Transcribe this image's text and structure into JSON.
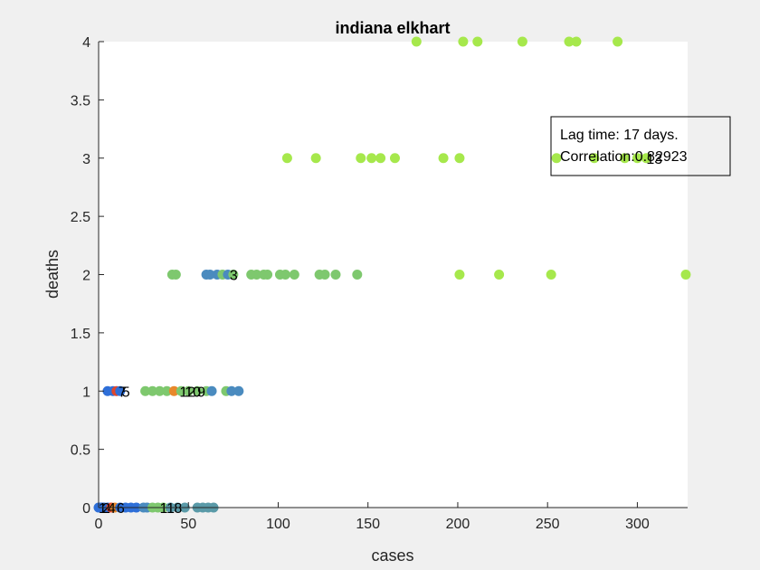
{
  "chart_data": {
    "type": "scatter",
    "title": "indiana elkhart",
    "xlabel": "cases",
    "ylabel": "deaths",
    "xlim": [
      0,
      328
    ],
    "ylim": [
      0,
      4
    ],
    "xticks": [
      0,
      50,
      100,
      150,
      200,
      250,
      300
    ],
    "yticks": [
      0,
      0.5,
      1,
      1.5,
      2,
      2.5,
      3,
      3.5,
      4
    ],
    "annotation": [
      "Lag time: 17 days.",
      "Correlation:0.82923"
    ],
    "legend_position": "top-right",
    "colors": {
      "blue": "#2e6fd8",
      "steel": "#4a8bbf",
      "teal": "#5a9aa8",
      "green": "#7ec86e",
      "lime": "#a6e84c",
      "red": "#e0472b",
      "orange": "#e8882b"
    },
    "points": [
      {
        "x": 0,
        "y": 0,
        "c": "blue"
      },
      {
        "x": 1,
        "y": 0,
        "c": "blue"
      },
      {
        "x": 2,
        "y": 0,
        "c": "blue"
      },
      {
        "x": 3,
        "y": 0,
        "c": "blue"
      },
      {
        "x": 5,
        "y": 0,
        "c": "blue"
      },
      {
        "x": 7,
        "y": 0,
        "c": "red"
      },
      {
        "x": 9,
        "y": 0,
        "c": "orange"
      },
      {
        "x": 12,
        "y": 0,
        "c": "blue"
      },
      {
        "x": 15,
        "y": 0,
        "c": "blue"
      },
      {
        "x": 18,
        "y": 0,
        "c": "blue"
      },
      {
        "x": 21,
        "y": 0,
        "c": "blue"
      },
      {
        "x": 25,
        "y": 0,
        "c": "steel"
      },
      {
        "x": 27,
        "y": 0,
        "c": "steel"
      },
      {
        "x": 30,
        "y": 0,
        "c": "green"
      },
      {
        "x": 33,
        "y": 0,
        "c": "green"
      },
      {
        "x": 36,
        "y": 0,
        "c": "green"
      },
      {
        "x": 40,
        "y": 0,
        "c": "teal"
      },
      {
        "x": 44,
        "y": 0,
        "c": "teal"
      },
      {
        "x": 48,
        "y": 0,
        "c": "teal"
      },
      {
        "x": 55,
        "y": 0,
        "c": "teal"
      },
      {
        "x": 58,
        "y": 0,
        "c": "teal"
      },
      {
        "x": 61,
        "y": 0,
        "c": "teal"
      },
      {
        "x": 64,
        "y": 0,
        "c": "teal"
      },
      {
        "x": 5,
        "y": 1,
        "c": "blue"
      },
      {
        "x": 8,
        "y": 1,
        "c": "blue"
      },
      {
        "x": 10,
        "y": 1,
        "c": "red"
      },
      {
        "x": 12,
        "y": 1,
        "c": "blue"
      },
      {
        "x": 26,
        "y": 1,
        "c": "green"
      },
      {
        "x": 30,
        "y": 1,
        "c": "green"
      },
      {
        "x": 34,
        "y": 1,
        "c": "green"
      },
      {
        "x": 38,
        "y": 1,
        "c": "green"
      },
      {
        "x": 42,
        "y": 1,
        "c": "orange"
      },
      {
        "x": 46,
        "y": 1,
        "c": "green"
      },
      {
        "x": 50,
        "y": 1,
        "c": "green"
      },
      {
        "x": 55,
        "y": 1,
        "c": "green"
      },
      {
        "x": 60,
        "y": 1,
        "c": "green"
      },
      {
        "x": 63,
        "y": 1,
        "c": "steel"
      },
      {
        "x": 71,
        "y": 1,
        "c": "green"
      },
      {
        "x": 74,
        "y": 1,
        "c": "steel"
      },
      {
        "x": 78,
        "y": 1,
        "c": "steel"
      },
      {
        "x": 41,
        "y": 2,
        "c": "green"
      },
      {
        "x": 43,
        "y": 2,
        "c": "green"
      },
      {
        "x": 60,
        "y": 2,
        "c": "steel"
      },
      {
        "x": 62,
        "y": 2,
        "c": "steel"
      },
      {
        "x": 66,
        "y": 2,
        "c": "steel"
      },
      {
        "x": 69,
        "y": 2,
        "c": "green"
      },
      {
        "x": 72,
        "y": 2,
        "c": "steel"
      },
      {
        "x": 75,
        "y": 2,
        "c": "green"
      },
      {
        "x": 85,
        "y": 2,
        "c": "green"
      },
      {
        "x": 88,
        "y": 2,
        "c": "green"
      },
      {
        "x": 92,
        "y": 2,
        "c": "green"
      },
      {
        "x": 94,
        "y": 2,
        "c": "green"
      },
      {
        "x": 101,
        "y": 2,
        "c": "green"
      },
      {
        "x": 104,
        "y": 2,
        "c": "green"
      },
      {
        "x": 109,
        "y": 2,
        "c": "green"
      },
      {
        "x": 123,
        "y": 2,
        "c": "green"
      },
      {
        "x": 126,
        "y": 2,
        "c": "green"
      },
      {
        "x": 132,
        "y": 2,
        "c": "green"
      },
      {
        "x": 144,
        "y": 2,
        "c": "green"
      },
      {
        "x": 201,
        "y": 2,
        "c": "lime"
      },
      {
        "x": 223,
        "y": 2,
        "c": "lime"
      },
      {
        "x": 252,
        "y": 2,
        "c": "lime"
      },
      {
        "x": 327,
        "y": 2,
        "c": "lime"
      },
      {
        "x": 105,
        "y": 3,
        "c": "lime"
      },
      {
        "x": 121,
        "y": 3,
        "c": "lime"
      },
      {
        "x": 146,
        "y": 3,
        "c": "lime"
      },
      {
        "x": 152,
        "y": 3,
        "c": "lime"
      },
      {
        "x": 157,
        "y": 3,
        "c": "lime"
      },
      {
        "x": 165,
        "y": 3,
        "c": "lime"
      },
      {
        "x": 192,
        "y": 3,
        "c": "lime"
      },
      {
        "x": 201,
        "y": 3,
        "c": "lime"
      },
      {
        "x": 255,
        "y": 3,
        "c": "lime"
      },
      {
        "x": 276,
        "y": 3,
        "c": "lime"
      },
      {
        "x": 293,
        "y": 3,
        "c": "lime"
      },
      {
        "x": 300,
        "y": 3,
        "c": "lime"
      },
      {
        "x": 305,
        "y": 3,
        "c": "lime"
      },
      {
        "x": 177,
        "y": 4,
        "c": "lime"
      },
      {
        "x": 203,
        "y": 4,
        "c": "lime"
      },
      {
        "x": 211,
        "y": 4,
        "c": "lime"
      },
      {
        "x": 236,
        "y": 4,
        "c": "lime"
      },
      {
        "x": 262,
        "y": 4,
        "c": "lime"
      },
      {
        "x": 266,
        "y": 4,
        "c": "lime"
      },
      {
        "x": 289,
        "y": 4,
        "c": "lime"
      }
    ],
    "point_labels": [
      {
        "text": "1",
        "x": 0,
        "y": 0
      },
      {
        "text": "2",
        "x": 2,
        "y": 0
      },
      {
        "text": "4",
        "x": 5,
        "y": 0
      },
      {
        "text": "6",
        "x": 10,
        "y": 0
      },
      {
        "text": "7",
        "x": 11,
        "y": 1
      },
      {
        "text": "5",
        "x": 13,
        "y": 1
      },
      {
        "text": "11",
        "x": 34,
        "y": 0
      },
      {
        "text": "8",
        "x": 42,
        "y": 0
      },
      {
        "text": "12",
        "x": 45,
        "y": 1
      },
      {
        "text": "10",
        "x": 48,
        "y": 1
      },
      {
        "text": "9",
        "x": 55,
        "y": 1
      },
      {
        "text": "3",
        "x": 73,
        "y": 2
      },
      {
        "text": "13",
        "x": 305,
        "y": 3
      }
    ]
  }
}
